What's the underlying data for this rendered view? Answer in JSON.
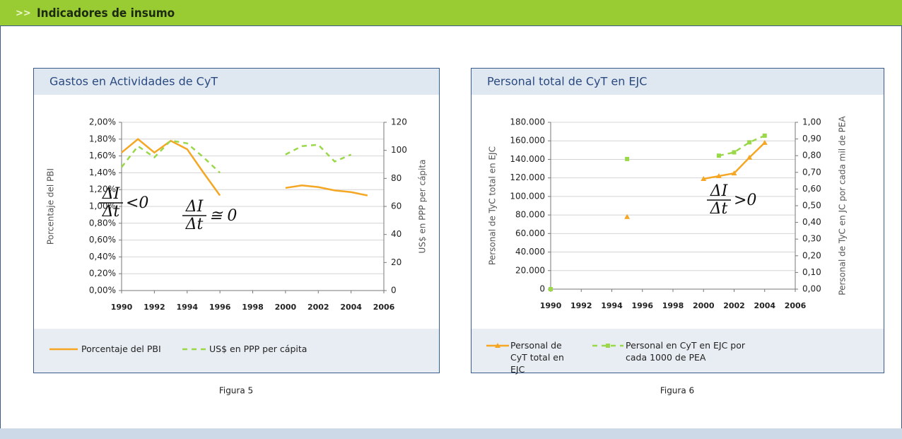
{
  "header": {
    "icon": ">>",
    "title": "Indicadores de insumo"
  },
  "captions": [
    "Figura 5",
    "Figura 6"
  ],
  "chart_data": [
    {
      "type": "line",
      "title": "Gastos en Actividades de CyT",
      "x": [
        1990,
        1991,
        1992,
        1993,
        1994,
        1995,
        1996,
        1997,
        1998,
        1999,
        2000,
        2001,
        2002,
        2003,
        2004,
        2005
      ],
      "xlim": [
        1990,
        2006
      ],
      "xticks": [
        1990,
        1992,
        1994,
        1996,
        1998,
        2000,
        2002,
        2004,
        2006
      ],
      "ylim": [
        0,
        2
      ],
      "yticks": [
        {
          "value": 0,
          "label": "0,00%"
        },
        {
          "value": 0.2,
          "label": "0,20%"
        },
        {
          "value": 0.4,
          "label": "0,40%"
        },
        {
          "value": 0.6,
          "label": "0,60%"
        },
        {
          "value": 0.8,
          "label": "0,80%"
        },
        {
          "value": 1,
          "label": "1,00%"
        },
        {
          "value": 1.2,
          "label": "1,20%"
        },
        {
          "value": 1.4,
          "label": "1,40%"
        },
        {
          "value": 1.6,
          "label": "1,60%"
        },
        {
          "value": 1.8,
          "label": "1,80%"
        },
        {
          "value": 2,
          "label": "2,00%"
        }
      ],
      "y2lim": [
        0,
        120
      ],
      "y2ticks": [
        0,
        20,
        40,
        60,
        80,
        100,
        120
      ],
      "ylabel": "Porcentaje del PBI",
      "y2label": "US$ en PPP per cápita",
      "grid": true,
      "series": [
        {
          "name": "Porcentaje del PBI",
          "color": "#f5a623",
          "style": "solid",
          "values": [
            1.64,
            1.8,
            1.64,
            1.78,
            1.68,
            1.4,
            1.13,
            null,
            null,
            null,
            1.22,
            1.25,
            1.23,
            1.19,
            1.17,
            1.13
          ]
        },
        {
          "name": "US$ en PPP per cápita",
          "color": "#9ad84a",
          "style": "dashed",
          "axis": "y2",
          "values": [
            88,
            103,
            95,
            107,
            105,
            95,
            84,
            null,
            null,
            null,
            97,
            103,
            104,
            92,
            97,
            null
          ]
        }
      ],
      "annotations": [
        {
          "numerator": "ΔI",
          "denominator": "Δt",
          "relation": "<0"
        },
        {
          "numerator": "ΔI",
          "denominator": "Δt",
          "relation": "≅ 0"
        }
      ]
    },
    {
      "type": "line",
      "title": "Personal total de CyT en EJC",
      "x": [
        1990,
        1991,
        1992,
        1993,
        1994,
        1995,
        1996,
        1997,
        1998,
        1999,
        2000,
        2001,
        2002,
        2003,
        2004
      ],
      "xlim": [
        1990,
        2006
      ],
      "xticks": [
        1990,
        1992,
        1994,
        1996,
        1998,
        2000,
        2002,
        2004,
        2006
      ],
      "ylim": [
        0,
        180000
      ],
      "yticks": [
        0,
        {
          "value": 20000,
          "label": "20.000"
        },
        {
          "value": 40000,
          "label": "40.000"
        },
        {
          "value": 60000,
          "label": "60.000"
        },
        {
          "value": 80000,
          "label": "80.000"
        },
        {
          "value": 100000,
          "label": "100.000"
        },
        {
          "value": 120000,
          "label": "120.000"
        },
        {
          "value": 140000,
          "label": "140.000"
        },
        {
          "value": 160000,
          "label": "160.000"
        },
        {
          "value": 180000,
          "label": "180.000"
        }
      ],
      "y2lim": [
        0,
        1
      ],
      "y2ticks": [
        {
          "value": 0,
          "label": "0,00"
        },
        {
          "value": 0.1,
          "label": "0,10"
        },
        {
          "value": 0.2,
          "label": "0,20"
        },
        {
          "value": 0.3,
          "label": "0,30"
        },
        {
          "value": 0.4,
          "label": "0,40"
        },
        {
          "value": 0.5,
          "label": "0,50"
        },
        {
          "value": 0.6,
          "label": "0,60"
        },
        {
          "value": 0.7,
          "label": "0,70"
        },
        {
          "value": 0.8,
          "label": "0,80"
        },
        {
          "value": 0.9,
          "label": "0,90"
        },
        {
          "value": 1,
          "label": "1,00"
        }
      ],
      "ylabel": "Personal de TyC total en EJC",
      "y2label": "Personal de TyC en JC por cada mil de PEA",
      "grid": true,
      "series": [
        {
          "name": "Personal de CyT total en EJC",
          "color": "#f5a623",
          "style": "solid",
          "marker": "triangle",
          "values": [
            null,
            null,
            null,
            null,
            null,
            78000,
            null,
            null,
            null,
            null,
            119000,
            122000,
            125000,
            142000,
            158000
          ]
        },
        {
          "name": "Personal en CyT en EJC por cada 1000 de PEA",
          "color": "#9ad84a",
          "style": "dashed",
          "marker": "square",
          "axis": "y2",
          "values": [
            0,
            null,
            null,
            null,
            null,
            0.78,
            null,
            null,
            null,
            null,
            null,
            0.8,
            0.82,
            0.88,
            0.92
          ]
        }
      ],
      "annotations": [
        {
          "numerator": "ΔI",
          "denominator": "Δt",
          "relation": ">0"
        }
      ]
    }
  ]
}
